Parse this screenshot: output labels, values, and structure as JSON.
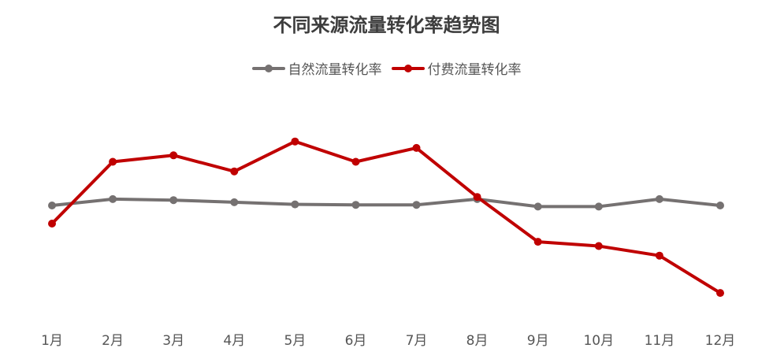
{
  "chart_data": {
    "type": "line",
    "title": "不同来源流量转化率趋势图",
    "xlabel": "",
    "ylabel": "",
    "categories": [
      "1月",
      "2月",
      "3月",
      "4月",
      "5月",
      "6月",
      "7月",
      "8月",
      "9月",
      "10月",
      "11月",
      "12月"
    ],
    "series": [
      {
        "name": "自然流量转化率",
        "color": "#757171",
        "values": [
          3.5,
          3.8,
          3.75,
          3.65,
          3.55,
          3.53,
          3.53,
          3.8,
          3.45,
          3.45,
          3.8,
          3.5
        ]
      },
      {
        "name": "付费流量转化率",
        "color": "#c00000",
        "values": [
          2.65,
          5.55,
          5.85,
          5.1,
          6.5,
          5.55,
          6.2,
          3.9,
          1.8,
          1.6,
          1.15,
          -0.6
        ]
      }
    ],
    "ylim": [
      -2,
      9
    ],
    "grid": false,
    "y_axis_visible": false,
    "legend_position": "top-center"
  }
}
